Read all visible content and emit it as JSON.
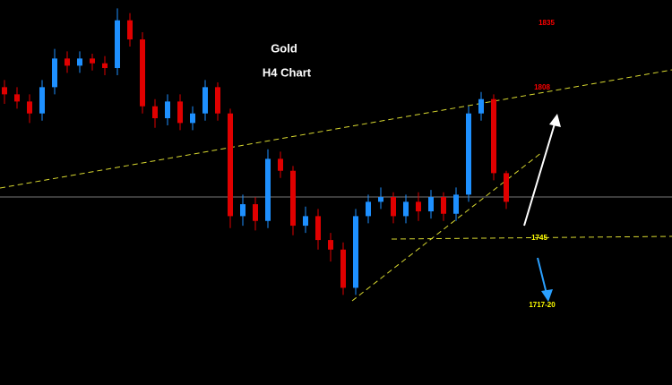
{
  "chart_data": {
    "type": "candlestick",
    "title": "Gold",
    "subtitle": "H4 Chart",
    "open": [
      1806,
      1803,
      1800,
      1795,
      1806,
      1818,
      1815,
      1818,
      1816,
      1814,
      1834,
      1826,
      1798,
      1793,
      1800,
      1791,
      1795,
      1806,
      1795,
      1752,
      1757,
      1750,
      1776,
      1771,
      1748,
      1752,
      1742,
      1738,
      1722,
      1752,
      1758,
      1760,
      1752,
      1758,
      1754,
      1760,
      1753,
      1761,
      1795,
      1801,
      1770
    ],
    "high": [
      1809,
      1806,
      1803,
      1809,
      1822,
      1821,
      1821,
      1820,
      1819,
      1839,
      1837,
      1829,
      1801,
      1803,
      1803,
      1798,
      1809,
      1808,
      1797,
      1761,
      1760,
      1780,
      1779,
      1773,
      1756,
      1755,
      1745,
      1741,
      1755,
      1761,
      1764,
      1762,
      1761,
      1762,
      1763,
      1762,
      1764,
      1798,
      1804,
      1803,
      1771
    ],
    "low": [
      1799,
      1797,
      1791,
      1792,
      1803,
      1812,
      1812,
      1813,
      1811,
      1811,
      1823,
      1795,
      1789,
      1790,
      1788,
      1788,
      1792,
      1792,
      1747,
      1748,
      1746,
      1747,
      1768,
      1744,
      1745,
      1738,
      1733,
      1719,
      1719,
      1749,
      1755,
      1749,
      1749,
      1750,
      1751,
      1750,
      1750,
      1758,
      1792,
      1767,
      1755
    ],
    "close": [
      1803,
      1800,
      1795,
      1806,
      1818,
      1815,
      1818,
      1816,
      1814,
      1834,
      1826,
      1798,
      1793,
      1800,
      1791,
      1795,
      1806,
      1795,
      1752,
      1757,
      1750,
      1776,
      1771,
      1748,
      1752,
      1742,
      1738,
      1722,
      1752,
      1758,
      1760,
      1752,
      1758,
      1754,
      1760,
      1753,
      1761,
      1795,
      1801,
      1770,
      1758
    ],
    "up_color": "#1e90ff",
    "down_color": "#e00000",
    "ylim": [
      1681.3,
      1842.5
    ],
    "levels": [
      {
        "value": 1835,
        "color": "#ff0000"
      },
      {
        "value": 1808,
        "color": "#ff0000"
      },
      {
        "value": 1745,
        "color": "#ffff00"
      },
      {
        "value": {
          "value": 1717,
          "label": "1717-20"
        },
        "color": "#ffff00"
      }
    ]
  }
}
